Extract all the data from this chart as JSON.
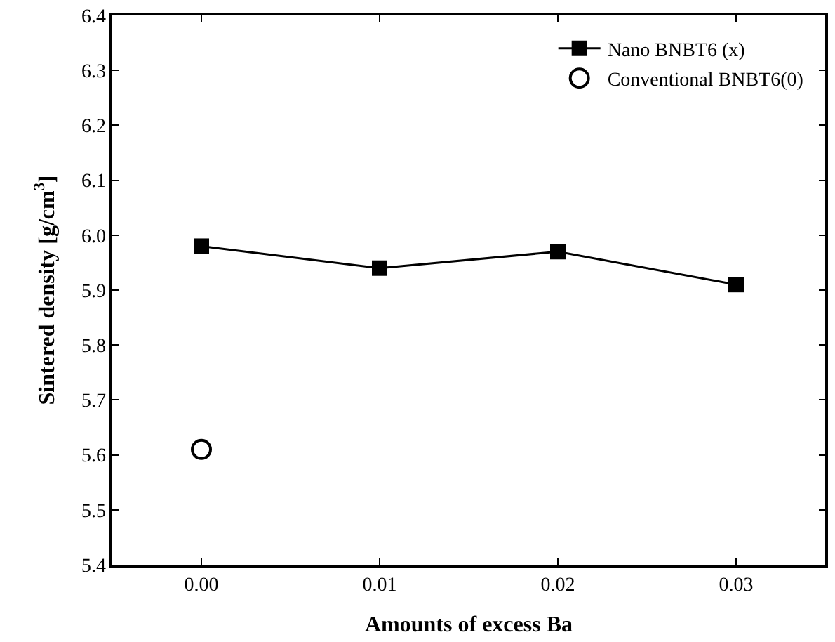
{
  "chart_data": {
    "type": "line",
    "xlabel": "Amounts of excess Ba",
    "ylabel": "Sintered density [g/cm$^{3}$]",
    "x": [
      0.0,
      0.01,
      0.02,
      0.03
    ],
    "series": [
      {
        "name": "Nano BNBT6 (x)",
        "color": "#000000",
        "marker": "square",
        "values": [
          5.98,
          5.94,
          5.97,
          5.91
        ]
      },
      {
        "name": "Conventional BNBT6(0)",
        "color": "#000000",
        "type": "scatter",
        "marker": "circle",
        "x": [
          0.0
        ],
        "values": [
          5.61
        ]
      }
    ],
    "xlim": [
      -0.005,
      0.035
    ],
    "xticks": [
      {
        "value": 0.0,
        "label": "0.00"
      },
      {
        "value": 0.01,
        "label": "0.01"
      },
      {
        "value": 0.02,
        "label": "0.02"
      },
      {
        "value": 0.03,
        "label": "0.03"
      }
    ],
    "ylim": [
      5.4,
      6.4
    ],
    "yticks": [
      {
        "value": 5.4,
        "label": "5.4"
      },
      {
        "value": 5.5,
        "label": "5.5"
      },
      {
        "value": 5.6,
        "label": "5.6"
      },
      {
        "value": 5.7,
        "label": "5.7"
      },
      {
        "value": 5.8,
        "label": "5.8"
      },
      {
        "value": 5.9,
        "label": "5.9"
      },
      {
        "value": 6.0,
        "label": "6.0"
      },
      {
        "value": 6.1,
        "label": "6.1"
      },
      {
        "value": 6.2,
        "label": "6.2"
      },
      {
        "value": 6.3,
        "label": "6.3"
      },
      {
        "value": 6.4,
        "label": "6.4"
      }
    ],
    "legend": "top right"
  }
}
